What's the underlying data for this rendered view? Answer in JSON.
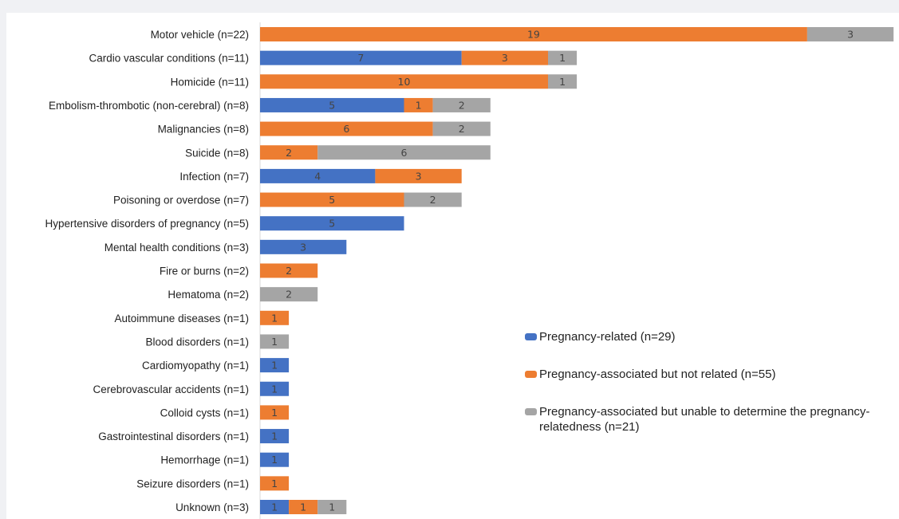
{
  "chart_data": {
    "type": "bar",
    "orientation": "horizontal",
    "stacked": true,
    "categories": [
      "Motor vehicle (n=22)",
      "Cardio vascular conditions (n=11)",
      "Homicide (n=11)",
      "Embolism-thrombotic (non-cerebral) (n=8)",
      "Malignancies (n=8)",
      "Suicide (n=8)",
      "Infection (n=7)",
      "Poisoning or overdose (n=7)",
      "Hypertensive disorders of pregnancy (n=5)",
      "Mental health conditions (n=3)",
      "Fire or burns (n=2)",
      "Hematoma (n=2)",
      "Autoimmune diseases (n=1)",
      "Blood disorders (n=1)",
      "Cardiomyopathy (n=1)",
      "Cerebrovascular accidents (n=1)",
      "Colloid cysts (n=1)",
      "Gastrointestinal disorders (n=1)",
      "Hemorrhage (n=1)",
      "Seizure disorders (n=1)",
      "Unknown (n=3)"
    ],
    "series": [
      {
        "name": "Pregnancy-related (n=29)",
        "color": "#4472c4",
        "values": [
          0,
          7,
          0,
          5,
          0,
          0,
          4,
          0,
          5,
          3,
          0,
          0,
          0,
          0,
          1,
          1,
          0,
          1,
          1,
          0,
          1
        ]
      },
      {
        "name": "Pregnancy-associated but not related (n=55)",
        "color": "#ed7d31",
        "values": [
          19,
          3,
          10,
          1,
          6,
          2,
          3,
          5,
          0,
          0,
          2,
          0,
          1,
          0,
          0,
          0,
          1,
          0,
          0,
          1,
          1
        ]
      },
      {
        "name": "Pregnancy-associated but unable to determine the pregnancy-relatedness (n=21)",
        "color": "#a5a5a5",
        "values": [
          3,
          1,
          1,
          2,
          2,
          6,
          0,
          2,
          0,
          0,
          0,
          2,
          0,
          1,
          0,
          0,
          0,
          0,
          0,
          0,
          1
        ]
      }
    ],
    "xlim": [
      0,
      22
    ],
    "grid": false,
    "legend_position": "right"
  }
}
